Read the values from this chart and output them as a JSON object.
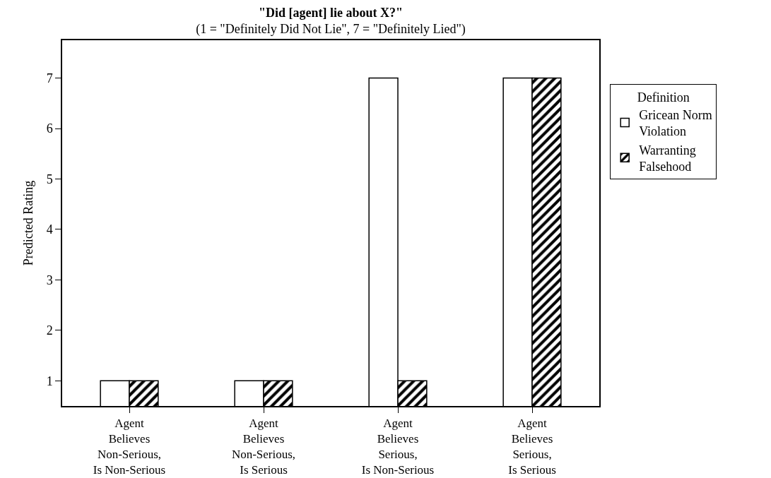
{
  "chart_data": {
    "type": "bar",
    "title": "\"Did [agent] lie about X?\"",
    "subtitle": "(1 = \"Definitely Did Not Lie\", 7 = \"Definitely Lied\")",
    "ylabel": "Predicted Rating",
    "legend_title": "Definition",
    "categories": [
      "Agent\nBelieves\nNon-Serious,\nIs Non-Serious",
      "Agent\nBelieves\nNon-Serious,\nIs Serious",
      "Agent\nBelieves\nSerious,\nIs Non-Serious",
      "Agent\nBelieves\nSerious,\nIs Serious"
    ],
    "series": [
      {
        "name": "Gricean Norm\nViolation",
        "color": "#ffffff",
        "values": [
          1,
          1,
          7,
          7
        ]
      },
      {
        "name": "Warranting\nFalsehood",
        "color": "#000000",
        "values": [
          1,
          1,
          1,
          7
        ]
      }
    ],
    "ylim": [
      0.5,
      7.75
    ],
    "yticks": [
      1,
      2,
      3,
      4,
      5,
      6,
      7
    ],
    "grid": false,
    "legend": "right"
  }
}
